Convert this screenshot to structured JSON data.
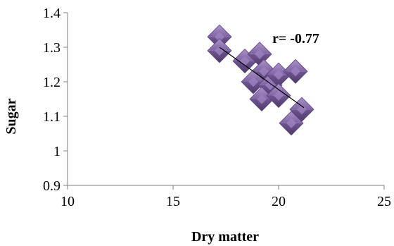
{
  "chart_data": {
    "type": "scatter",
    "xlabel": "Dry matter",
    "ylabel": "Sugar",
    "xlim": [
      10,
      25
    ],
    "ylim": [
      0.9,
      1.4
    ],
    "xticks": [
      10,
      15,
      20,
      25
    ],
    "xtick_labels": [
      "10",
      "15",
      "20",
      "25"
    ],
    "yticks": [
      0.9,
      1.0,
      1.1,
      1.2,
      1.3,
      1.4
    ],
    "ytick_labels": [
      "0.9",
      "1",
      "1.1",
      "1.2",
      "1.3",
      "1.4"
    ],
    "grid": false,
    "marker": "diamond",
    "marker_color": "#8064A2",
    "annotation": "r= -0.77",
    "points": [
      {
        "x": 17.2,
        "y": 1.33
      },
      {
        "x": 17.2,
        "y": 1.29
      },
      {
        "x": 18.4,
        "y": 1.26
      },
      {
        "x": 19.1,
        "y": 1.28
      },
      {
        "x": 19.3,
        "y": 1.23
      },
      {
        "x": 18.8,
        "y": 1.2
      },
      {
        "x": 19.6,
        "y": 1.19
      },
      {
        "x": 20.0,
        "y": 1.22
      },
      {
        "x": 20.8,
        "y": 1.23
      },
      {
        "x": 19.2,
        "y": 1.15
      },
      {
        "x": 20.0,
        "y": 1.16
      },
      {
        "x": 21.1,
        "y": 1.12
      },
      {
        "x": 20.6,
        "y": 1.08
      }
    ],
    "trendline": {
      "x": [
        17.2,
        21.2
      ],
      "y": [
        1.3,
        1.125
      ]
    }
  }
}
